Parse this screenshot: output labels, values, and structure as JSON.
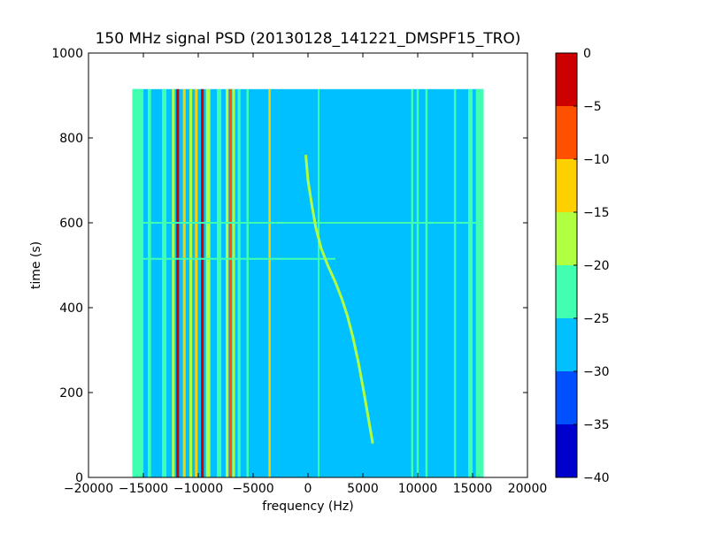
{
  "chart_data": {
    "type": "heatmap",
    "title": "150 MHz signal PSD (20130128_141221_DMSPF15_TRO)",
    "xlabel": "frequency (Hz)",
    "ylabel": "time (s)",
    "xlim": [
      -20000,
      20000
    ],
    "ylim": [
      0,
      1000
    ],
    "xticks": [
      -20000,
      -15000,
      -10000,
      -5000,
      0,
      5000,
      10000,
      15000,
      20000
    ],
    "yticks": [
      0,
      200,
      400,
      600,
      800,
      1000
    ],
    "data_extent": {
      "x": [
        -16000,
        16000
      ],
      "y": [
        0,
        915
      ]
    },
    "background_level_db": -27.5,
    "colorbar": {
      "range": [
        -40,
        0
      ],
      "ticks": [
        0,
        -5,
        -10,
        -15,
        -20,
        -25,
        -30,
        -35,
        -40
      ],
      "bands": [
        {
          "range": [
            -40,
            -35
          ],
          "color": "#0000cd"
        },
        {
          "range": [
            -35,
            -30
          ],
          "color": "#0050ff"
        },
        {
          "range": [
            -30,
            -25
          ],
          "color": "#00c0ff"
        },
        {
          "range": [
            -25,
            -20
          ],
          "color": "#40ffb0"
        },
        {
          "range": [
            -20,
            -15
          ],
          "color": "#b0ff40"
        },
        {
          "range": [
            -15,
            -10
          ],
          "color": "#ffd000"
        },
        {
          "range": [
            -10,
            -5
          ],
          "color": "#ff5000"
        },
        {
          "range": [
            -5,
            0
          ],
          "color": "#cd0000"
        }
      ]
    },
    "vertical_bands": [
      {
        "from": -16000,
        "to": -15000,
        "level_db": -22.5
      },
      {
        "from": -14600,
        "to": -14300,
        "level_db": -22.5
      },
      {
        "from": -13300,
        "to": -12900,
        "level_db": -22.5
      },
      {
        "from": -12400,
        "to": -12150,
        "level_db": -17.5
      },
      {
        "from": -12000,
        "to": -11750,
        "level_db": -2.5
      },
      {
        "from": -11400,
        "to": -11150,
        "level_db": -12.5
      },
      {
        "from": -10800,
        "to": -10550,
        "level_db": -17.5
      },
      {
        "from": -10300,
        "to": -10050,
        "level_db": -12.5
      },
      {
        "from": -9750,
        "to": -9500,
        "level_db": -2.5
      },
      {
        "from": -9300,
        "to": -8900,
        "level_db": -17.5
      },
      {
        "from": -8300,
        "to": -7900,
        "level_db": -22.5
      },
      {
        "from": -7500,
        "to": -7250,
        "level_db": -17.5
      },
      {
        "from": -7200,
        "to": -6950,
        "level_db": -7.5
      },
      {
        "from": -6900,
        "to": -6650,
        "level_db": -17.5
      },
      {
        "from": -6400,
        "to": -6150,
        "level_db": -22.5
      },
      {
        "from": -5600,
        "to": -5400,
        "level_db": -22.5
      },
      {
        "from": -3600,
        "to": -3400,
        "level_db": -12.5
      },
      {
        "from": 900,
        "to": 1050,
        "level_db": -22.5
      },
      {
        "from": 9400,
        "to": 9600,
        "level_db": -22.5
      },
      {
        "from": 9900,
        "to": 10100,
        "level_db": -22.5
      },
      {
        "from": 10700,
        "to": 10900,
        "level_db": -22.5
      },
      {
        "from": 13300,
        "to": 13500,
        "level_db": -22.5
      },
      {
        "from": 14600,
        "to": 15000,
        "level_db": -22.5
      },
      {
        "from": 15300,
        "to": 16000,
        "level_db": -22.5
      }
    ],
    "horizontal_lines": [
      {
        "t": 600,
        "from": -16000,
        "to": 16000,
        "level_db": -22.5
      },
      {
        "t": 515,
        "from": -16000,
        "to": 2500,
        "level_db": -22.5
      }
    ],
    "doppler_track": {
      "level_db": -17.5,
      "points": [
        [
          -200,
          760
        ],
        [
          0,
          700
        ],
        [
          300,
          650
        ],
        [
          700,
          590
        ],
        [
          1200,
          540
        ],
        [
          1800,
          500
        ],
        [
          2500,
          460
        ],
        [
          3100,
          420
        ],
        [
          3600,
          380
        ],
        [
          4100,
          330
        ],
        [
          4600,
          270
        ],
        [
          5100,
          200
        ],
        [
          5500,
          140
        ],
        [
          5900,
          80
        ]
      ]
    }
  }
}
